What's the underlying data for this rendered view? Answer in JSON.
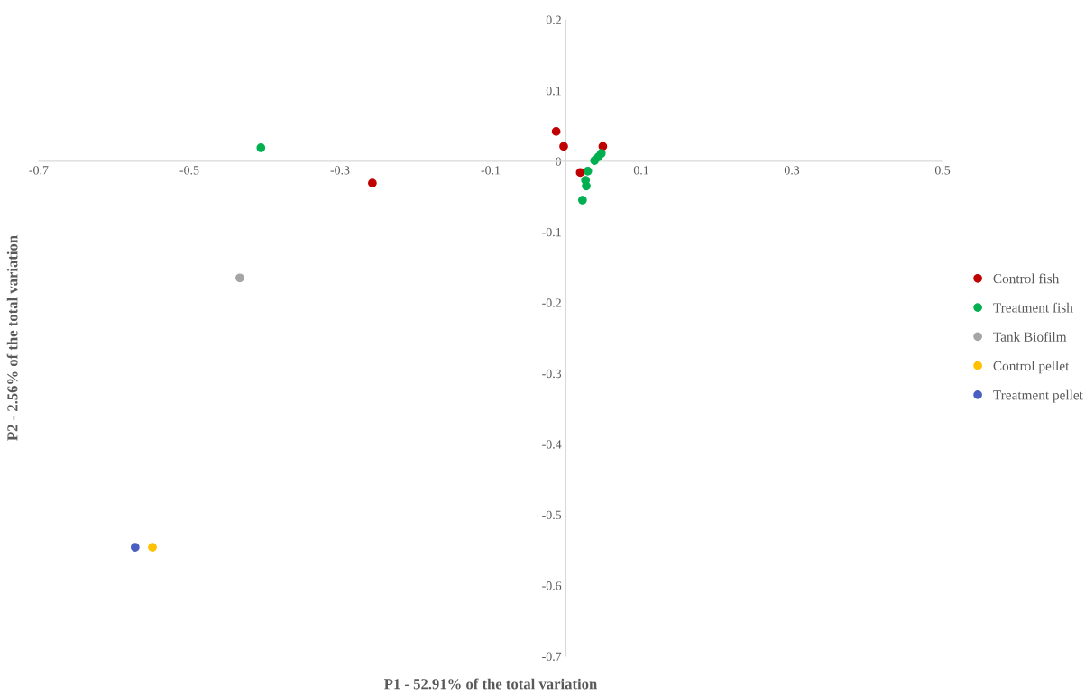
{
  "chart_data": {
    "type": "scatter",
    "xlabel": "P1 - 52.91% of the total variation",
    "ylabel": "P2 - 2.56% of the total variation",
    "xlim": [
      -0.7,
      0.5
    ],
    "xticks": [
      -0.7,
      -0.5,
      -0.3,
      -0.1,
      0.1,
      0.3,
      0.5
    ],
    "ylim": [
      -0.7,
      0.2
    ],
    "yticks": [
      -0.7,
      -0.6,
      -0.5,
      -0.4,
      -0.3,
      -0.2,
      -0.1,
      0,
      0.1,
      0.2
    ],
    "grid": false,
    "legend": "right",
    "marker": "circle",
    "series": [
      {
        "name": "Control fish",
        "color": "#c00000",
        "x": [
          -0.257,
          -0.013,
          -0.003,
          0.049,
          0.019
        ],
        "values": [
          -0.031,
          0.042,
          0.021,
          0.021,
          -0.016
        ]
      },
      {
        "name": "Treatment fish",
        "color": "#00b050",
        "x": [
          -0.405,
          0.038,
          0.043,
          0.047,
          0.029,
          0.026,
          0.027,
          0.022
        ],
        "values": [
          0.019,
          0.001,
          0.006,
          0.011,
          -0.014,
          -0.027,
          -0.035,
          -0.055
        ]
      },
      {
        "name": "Tank Biofilm",
        "color": "#a5a5a5",
        "x": [
          -0.433
        ],
        "values": [
          -0.165
        ]
      },
      {
        "name": "Control pellet",
        "color": "#ffc000",
        "x": [
          -0.549
        ],
        "values": [
          -0.546
        ]
      },
      {
        "name": "Treatment pellet",
        "color": "#4a5fc0",
        "x": [
          -0.572
        ],
        "values": [
          -0.546
        ]
      }
    ]
  }
}
